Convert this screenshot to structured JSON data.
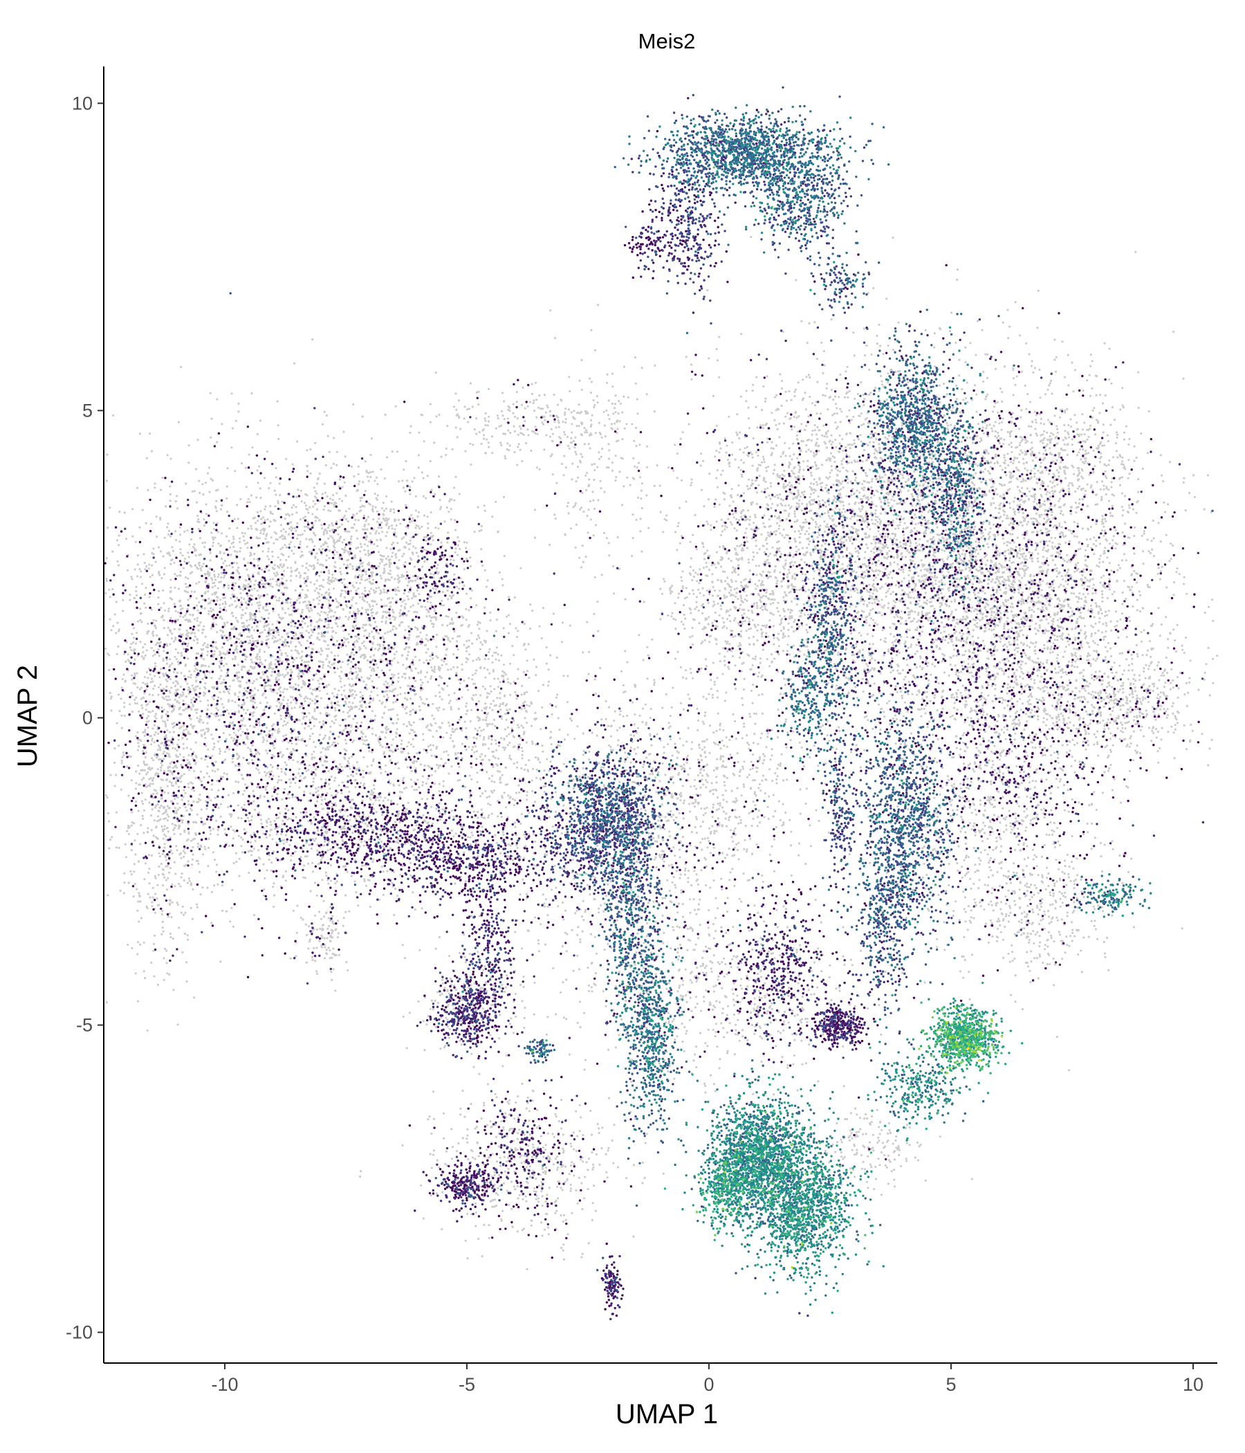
{
  "chart_data": {
    "type": "scatter",
    "title": "Meis2",
    "xlabel": "UMAP 1",
    "ylabel": "UMAP 2",
    "xlim": [
      -12.5,
      10.5
    ],
    "ylim": [
      -10.5,
      10.6
    ],
    "x_ticks": [
      {
        "value": -10,
        "label": "-10"
      },
      {
        "value": -5,
        "label": "-5"
      },
      {
        "value": 0,
        "label": "0"
      },
      {
        "value": 5,
        "label": "5"
      },
      {
        "value": 10,
        "label": "10"
      }
    ],
    "y_ticks": [
      {
        "value": -10,
        "label": "-10"
      },
      {
        "value": -5,
        "label": "-5"
      },
      {
        "value": 0,
        "label": "0"
      },
      {
        "value": 5,
        "label": "5"
      },
      {
        "value": 10,
        "label": "10"
      }
    ],
    "grid": false,
    "legend": "none",
    "colors": {
      "unexpressed": "#cccccc",
      "low": "#440154",
      "mid_low": "#3b528b",
      "mid": "#21908c",
      "high": "#5dc863",
      "top": "#fde725"
    },
    "clusters": [
      {
        "kind": "grey",
        "x": -9.5,
        "y": 1.2,
        "sx": 1.6,
        "sy": 1.4,
        "n": 2800,
        "tint": 0.1
      },
      {
        "kind": "grey",
        "x": -11.2,
        "y": -1.2,
        "sx": 0.45,
        "sy": 1.4,
        "n": 700,
        "tint": 0.1
      },
      {
        "kind": "grey",
        "x": -7.0,
        "y": 2.6,
        "sx": 1.1,
        "sy": 0.8,
        "n": 900,
        "tint": 0.1
      },
      {
        "kind": "grey",
        "x": -6.5,
        "y": 0.5,
        "sx": 1.3,
        "sy": 1.0,
        "n": 1000,
        "tint": 0.1
      },
      {
        "kind": "grey",
        "x": -7.5,
        "y": -1.8,
        "sx": 1.8,
        "sy": 0.6,
        "n": 900,
        "tint": 0.2
      },
      {
        "kind": "grey",
        "x": -3.7,
        "y": 4.8,
        "sx": 1.1,
        "sy": 0.3,
        "n": 250,
        "tint": 0.05
      },
      {
        "kind": "grey",
        "x": -2.4,
        "y": 4.0,
        "sx": 0.6,
        "sy": 0.9,
        "n": 200,
        "tint": 0.05
      },
      {
        "kind": "grey",
        "x": 5.0,
        "y": 2.6,
        "sx": 2.0,
        "sy": 1.5,
        "n": 3800,
        "tint": 0.12
      },
      {
        "kind": "grey",
        "x": 2.2,
        "y": 3.5,
        "sx": 1.4,
        "sy": 1.0,
        "n": 1200,
        "tint": 0.12
      },
      {
        "kind": "grey",
        "x": 6.8,
        "y": 1.5,
        "sx": 1.2,
        "sy": 1.2,
        "n": 1100,
        "tint": 0.1
      },
      {
        "kind": "grey",
        "x": 8.6,
        "y": 0.2,
        "sx": 0.8,
        "sy": 0.4,
        "n": 400,
        "tint": 0.1
      },
      {
        "kind": "grey",
        "x": 7.2,
        "y": 4.2,
        "sx": 0.8,
        "sy": 0.5,
        "n": 350,
        "tint": 0.1
      },
      {
        "kind": "grey",
        "x": 6.0,
        "y": -1.5,
        "sx": 1.0,
        "sy": 1.2,
        "n": 700,
        "tint": 0.15
      },
      {
        "kind": "grey",
        "x": 6.8,
        "y": -3.2,
        "sx": 0.8,
        "sy": 0.5,
        "n": 300,
        "tint": 0.1
      },
      {
        "kind": "grey",
        "x": 0.8,
        "y": 1.9,
        "sx": 0.8,
        "sy": 0.6,
        "n": 500,
        "tint": 0.1
      },
      {
        "kind": "grey",
        "x": 0.2,
        "y": -1.0,
        "sx": 1.0,
        "sy": 0.8,
        "n": 500,
        "tint": 0.1
      },
      {
        "kind": "grey",
        "x": -1.8,
        "y": -1.8,
        "sx": 1.2,
        "sy": 1.3,
        "n": 900,
        "tint": 0.25
      },
      {
        "kind": "grey",
        "x": -4.2,
        "y": -0.2,
        "sx": 0.5,
        "sy": 1.0,
        "n": 350,
        "tint": 0.1
      },
      {
        "kind": "grey",
        "x": 0.5,
        "y": -4.5,
        "sx": 1.4,
        "sy": 0.7,
        "n": 600,
        "tint": 0.15
      },
      {
        "kind": "grey",
        "x": -3.8,
        "y": -7.3,
        "sx": 1.0,
        "sy": 0.6,
        "n": 500,
        "tint": 0.15
      },
      {
        "kind": "grey",
        "x": -7.9,
        "y": -3.6,
        "sx": 0.3,
        "sy": 0.3,
        "n": 120,
        "tint": 0.2
      },
      {
        "kind": "grey",
        "x": 3.4,
        "y": -7.0,
        "sx": 0.5,
        "sy": 0.3,
        "n": 150,
        "tint": 0.05
      },
      {
        "kind": "grey",
        "x": -5.0,
        "y": -4.6,
        "sx": 0.6,
        "sy": 0.4,
        "n": 200,
        "tint": 0.1
      },
      {
        "kind": "expr",
        "x": 0.8,
        "y": 9.2,
        "sx": 0.9,
        "sy": 0.3,
        "n": 1400,
        "level": 0.32
      },
      {
        "kind": "expr",
        "x": 1.9,
        "y": 8.4,
        "sx": 0.5,
        "sy": 0.4,
        "n": 500,
        "level": 0.3
      },
      {
        "kind": "expr",
        "x": -0.4,
        "y": 8.0,
        "sx": 0.35,
        "sy": 0.6,
        "n": 350,
        "level": 0.15
      },
      {
        "kind": "expr",
        "x": -1.2,
        "y": 7.7,
        "sx": 0.3,
        "sy": 0.2,
        "n": 100,
        "level": 0.05
      },
      {
        "kind": "expr",
        "x": 2.7,
        "y": 7.1,
        "sx": 0.3,
        "sy": 0.3,
        "n": 120,
        "level": 0.25
      },
      {
        "kind": "expr",
        "x": 4.2,
        "y": 4.8,
        "sx": 0.45,
        "sy": 0.6,
        "n": 900,
        "level": 0.3
      },
      {
        "kind": "expr",
        "x": 5.1,
        "y": 3.7,
        "sx": 0.3,
        "sy": 0.8,
        "n": 500,
        "level": 0.3
      },
      {
        "kind": "expr",
        "x": 2.5,
        "y": 1.5,
        "sx": 0.25,
        "sy": 0.9,
        "n": 500,
        "level": 0.28
      },
      {
        "kind": "expr",
        "x": 2.0,
        "y": 0.3,
        "sx": 0.25,
        "sy": 0.4,
        "n": 200,
        "level": 0.35
      },
      {
        "kind": "expr",
        "x": 4.0,
        "y": -1.8,
        "sx": 0.5,
        "sy": 1.0,
        "n": 1200,
        "level": 0.28
      },
      {
        "kind": "expr",
        "x": 3.6,
        "y": -3.4,
        "sx": 0.25,
        "sy": 0.7,
        "n": 300,
        "level": 0.25
      },
      {
        "kind": "expr",
        "x": 2.7,
        "y": -1.4,
        "sx": 0.15,
        "sy": 0.6,
        "n": 200,
        "level": 0.2
      },
      {
        "kind": "expr",
        "x": -2.1,
        "y": -1.7,
        "sx": 0.6,
        "sy": 0.6,
        "n": 1300,
        "level": 0.22
      },
      {
        "kind": "expr",
        "x": -1.6,
        "y": -3.2,
        "sx": 0.3,
        "sy": 0.8,
        "n": 500,
        "level": 0.3
      },
      {
        "kind": "expr",
        "x": -1.2,
        "y": -5.2,
        "sx": 0.3,
        "sy": 0.8,
        "n": 700,
        "level": 0.35
      },
      {
        "kind": "expr",
        "x": 1.0,
        "y": -7.2,
        "sx": 0.5,
        "sy": 0.5,
        "n": 1700,
        "level": 0.45
      },
      {
        "kind": "expr",
        "x": 2.0,
        "y": -7.9,
        "sx": 0.5,
        "sy": 0.55,
        "n": 1300,
        "level": 0.48
      },
      {
        "kind": "expr",
        "x": 0.3,
        "y": -7.7,
        "sx": 0.25,
        "sy": 0.3,
        "n": 300,
        "level": 0.55
      },
      {
        "kind": "expr",
        "x": 5.3,
        "y": -5.2,
        "sx": 0.35,
        "sy": 0.25,
        "n": 900,
        "level": 0.6
      },
      {
        "kind": "expr",
        "x": 4.4,
        "y": -6.0,
        "sx": 0.4,
        "sy": 0.3,
        "n": 300,
        "level": 0.45
      },
      {
        "kind": "expr",
        "x": 2.7,
        "y": -5.0,
        "sx": 0.25,
        "sy": 0.15,
        "n": 300,
        "level": 0.05
      },
      {
        "kind": "expr",
        "x": 1.5,
        "y": -4.0,
        "sx": 0.5,
        "sy": 0.6,
        "n": 400,
        "level": 0.08
      },
      {
        "kind": "expr",
        "x": -5.0,
        "y": -4.8,
        "sx": 0.35,
        "sy": 0.3,
        "n": 400,
        "level": 0.08
      },
      {
        "kind": "expr",
        "x": -4.5,
        "y": -3.8,
        "sx": 0.3,
        "sy": 0.6,
        "n": 250,
        "level": 0.1
      },
      {
        "kind": "expr",
        "x": -3.5,
        "y": -5.4,
        "sx": 0.15,
        "sy": 0.1,
        "n": 80,
        "level": 0.3
      },
      {
        "kind": "expr",
        "x": -5.0,
        "y": -2.3,
        "sx": 1.0,
        "sy": 0.4,
        "n": 600,
        "level": 0.05
      },
      {
        "kind": "expr",
        "x": -7.0,
        "y": -1.9,
        "sx": 1.2,
        "sy": 0.4,
        "n": 500,
        "level": 0.05
      },
      {
        "kind": "expr",
        "x": -9.0,
        "y": 0.5,
        "sx": 1.6,
        "sy": 1.6,
        "n": 700,
        "level": 0.04
      },
      {
        "kind": "expr",
        "x": -5.0,
        "y": -7.6,
        "sx": 0.3,
        "sy": 0.2,
        "n": 250,
        "level": 0.05
      },
      {
        "kind": "expr",
        "x": -3.9,
        "y": -7.0,
        "sx": 0.5,
        "sy": 0.5,
        "n": 200,
        "level": 0.05
      },
      {
        "kind": "expr",
        "x": -2.0,
        "y": -9.2,
        "sx": 0.1,
        "sy": 0.2,
        "n": 120,
        "level": 0.05
      },
      {
        "kind": "expr",
        "x": 8.3,
        "y": -2.9,
        "sx": 0.35,
        "sy": 0.15,
        "n": 150,
        "level": 0.4
      },
      {
        "kind": "expr",
        "x": 4.8,
        "y": 1.8,
        "sx": 2.0,
        "sy": 1.6,
        "n": 900,
        "level": 0.04
      },
      {
        "kind": "expr",
        "x": 6.5,
        "y": -0.8,
        "sx": 1.2,
        "sy": 1.0,
        "n": 300,
        "level": 0.04
      },
      {
        "kind": "expr",
        "x": -5.6,
        "y": 2.4,
        "sx": 0.3,
        "sy": 0.3,
        "n": 100,
        "level": 0.05
      }
    ]
  }
}
